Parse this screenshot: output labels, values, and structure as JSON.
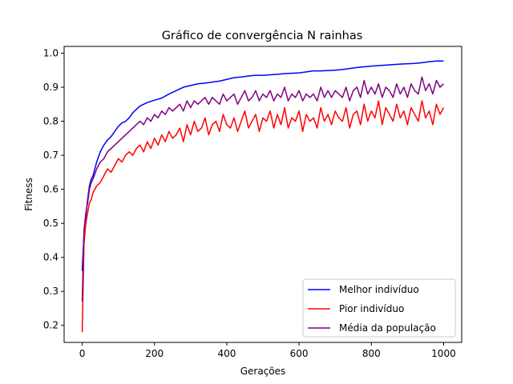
{
  "chart_data": {
    "type": "line",
    "title": "Gráfico de convergência N rainhas",
    "xlabel": "Gerações",
    "ylabel": "Fitness",
    "xlim": [
      -50,
      1050
    ],
    "ylim": [
      0.15,
      1.02
    ],
    "x_ticks": [
      0,
      200,
      400,
      600,
      800,
      1000
    ],
    "y_ticks": [
      0.2,
      0.3,
      0.4,
      0.5,
      0.6,
      0.7,
      0.8,
      0.9,
      1.0
    ],
    "x_tick_labels": [
      "0",
      "200",
      "400",
      "600",
      "800",
      "1000"
    ],
    "y_tick_labels": [
      "0.2",
      "0.3",
      "0.4",
      "0.5",
      "0.6",
      "0.7",
      "0.8",
      "0.9",
      "1.0"
    ],
    "grid": false,
    "legend_position": "lower-right",
    "series": [
      {
        "name": "Melhor indivíduo",
        "color": "#0000ff",
        "x": [
          0,
          5,
          10,
          15,
          20,
          25,
          30,
          40,
          50,
          60,
          70,
          80,
          90,
          100,
          110,
          120,
          130,
          140,
          150,
          160,
          180,
          200,
          220,
          240,
          260,
          280,
          300,
          320,
          340,
          360,
          380,
          400,
          420,
          440,
          460,
          480,
          500,
          540,
          560,
          600,
          620,
          640,
          660,
          700,
          720,
          740,
          760,
          780,
          800,
          840,
          880,
          920,
          940,
          960,
          980,
          1000
        ],
        "values": [
          0.36,
          0.47,
          0.52,
          0.57,
          0.61,
          0.63,
          0.64,
          0.68,
          0.71,
          0.73,
          0.745,
          0.755,
          0.77,
          0.785,
          0.795,
          0.8,
          0.81,
          0.825,
          0.835,
          0.845,
          0.855,
          0.862,
          0.868,
          0.88,
          0.89,
          0.9,
          0.905,
          0.91,
          0.912,
          0.915,
          0.918,
          0.923,
          0.928,
          0.93,
          0.933,
          0.935,
          0.935,
          0.938,
          0.94,
          0.942,
          0.945,
          0.948,
          0.948,
          0.95,
          0.952,
          0.955,
          0.958,
          0.96,
          0.962,
          0.965,
          0.968,
          0.97,
          0.972,
          0.975,
          0.977,
          0.977
        ]
      },
      {
        "name": "Pior indivíduo",
        "color": "#ff0000",
        "x": [
          0,
          5,
          10,
          15,
          20,
          25,
          30,
          40,
          50,
          60,
          70,
          80,
          90,
          100,
          110,
          120,
          130,
          140,
          150,
          160,
          170,
          180,
          190,
          200,
          210,
          220,
          230,
          240,
          250,
          260,
          270,
          280,
          290,
          300,
          310,
          320,
          330,
          340,
          350,
          360,
          370,
          380,
          390,
          400,
          410,
          420,
          430,
          440,
          450,
          460,
          470,
          480,
          490,
          500,
          510,
          520,
          530,
          540,
          550,
          560,
          570,
          580,
          590,
          600,
          610,
          620,
          630,
          640,
          650,
          660,
          670,
          680,
          690,
          700,
          710,
          720,
          730,
          740,
          750,
          760,
          770,
          780,
          790,
          800,
          810,
          820,
          830,
          840,
          850,
          860,
          870,
          880,
          890,
          900,
          910,
          920,
          930,
          940,
          950,
          960,
          970,
          980,
          990,
          1000
        ],
        "values": [
          0.18,
          0.44,
          0.5,
          0.53,
          0.56,
          0.57,
          0.59,
          0.61,
          0.62,
          0.64,
          0.66,
          0.65,
          0.67,
          0.69,
          0.68,
          0.7,
          0.71,
          0.7,
          0.72,
          0.73,
          0.71,
          0.74,
          0.72,
          0.75,
          0.73,
          0.76,
          0.74,
          0.77,
          0.75,
          0.76,
          0.78,
          0.74,
          0.79,
          0.76,
          0.8,
          0.77,
          0.78,
          0.81,
          0.76,
          0.79,
          0.8,
          0.77,
          0.82,
          0.79,
          0.78,
          0.81,
          0.77,
          0.8,
          0.83,
          0.78,
          0.8,
          0.82,
          0.77,
          0.81,
          0.8,
          0.83,
          0.78,
          0.82,
          0.79,
          0.84,
          0.78,
          0.81,
          0.8,
          0.83,
          0.77,
          0.82,
          0.8,
          0.81,
          0.78,
          0.84,
          0.8,
          0.82,
          0.79,
          0.83,
          0.81,
          0.8,
          0.84,
          0.78,
          0.82,
          0.83,
          0.79,
          0.85,
          0.8,
          0.83,
          0.81,
          0.86,
          0.79,
          0.84,
          0.82,
          0.8,
          0.85,
          0.81,
          0.83,
          0.79,
          0.84,
          0.82,
          0.8,
          0.86,
          0.81,
          0.83,
          0.79,
          0.85,
          0.82,
          0.84
        ]
      },
      {
        "name": "Média da população",
        "color": "#800080",
        "x": [
          0,
          5,
          10,
          15,
          20,
          25,
          30,
          40,
          50,
          60,
          70,
          80,
          90,
          100,
          110,
          120,
          130,
          140,
          150,
          160,
          170,
          180,
          190,
          200,
          210,
          220,
          230,
          240,
          250,
          260,
          270,
          280,
          290,
          300,
          310,
          320,
          330,
          340,
          350,
          360,
          370,
          380,
          390,
          400,
          410,
          420,
          430,
          440,
          450,
          460,
          470,
          480,
          490,
          500,
          510,
          520,
          530,
          540,
          550,
          560,
          570,
          580,
          590,
          600,
          610,
          620,
          630,
          640,
          650,
          660,
          670,
          680,
          690,
          700,
          710,
          720,
          730,
          740,
          750,
          760,
          770,
          780,
          790,
          800,
          810,
          820,
          830,
          840,
          850,
          860,
          870,
          880,
          890,
          900,
          910,
          920,
          930,
          940,
          950,
          960,
          970,
          980,
          990,
          1000
        ],
        "values": [
          0.27,
          0.48,
          0.53,
          0.56,
          0.6,
          0.62,
          0.63,
          0.66,
          0.68,
          0.69,
          0.71,
          0.72,
          0.73,
          0.74,
          0.75,
          0.76,
          0.77,
          0.78,
          0.79,
          0.8,
          0.79,
          0.81,
          0.8,
          0.82,
          0.81,
          0.83,
          0.82,
          0.84,
          0.83,
          0.84,
          0.85,
          0.83,
          0.86,
          0.84,
          0.86,
          0.85,
          0.86,
          0.87,
          0.85,
          0.87,
          0.86,
          0.85,
          0.88,
          0.86,
          0.87,
          0.88,
          0.85,
          0.87,
          0.89,
          0.86,
          0.87,
          0.89,
          0.86,
          0.88,
          0.87,
          0.89,
          0.86,
          0.88,
          0.87,
          0.9,
          0.86,
          0.88,
          0.87,
          0.89,
          0.86,
          0.88,
          0.87,
          0.88,
          0.86,
          0.9,
          0.87,
          0.89,
          0.87,
          0.89,
          0.88,
          0.87,
          0.9,
          0.86,
          0.89,
          0.9,
          0.87,
          0.92,
          0.88,
          0.9,
          0.88,
          0.91,
          0.87,
          0.9,
          0.89,
          0.87,
          0.91,
          0.88,
          0.9,
          0.87,
          0.91,
          0.89,
          0.88,
          0.93,
          0.89,
          0.91,
          0.88,
          0.92,
          0.9,
          0.91
        ]
      }
    ]
  }
}
